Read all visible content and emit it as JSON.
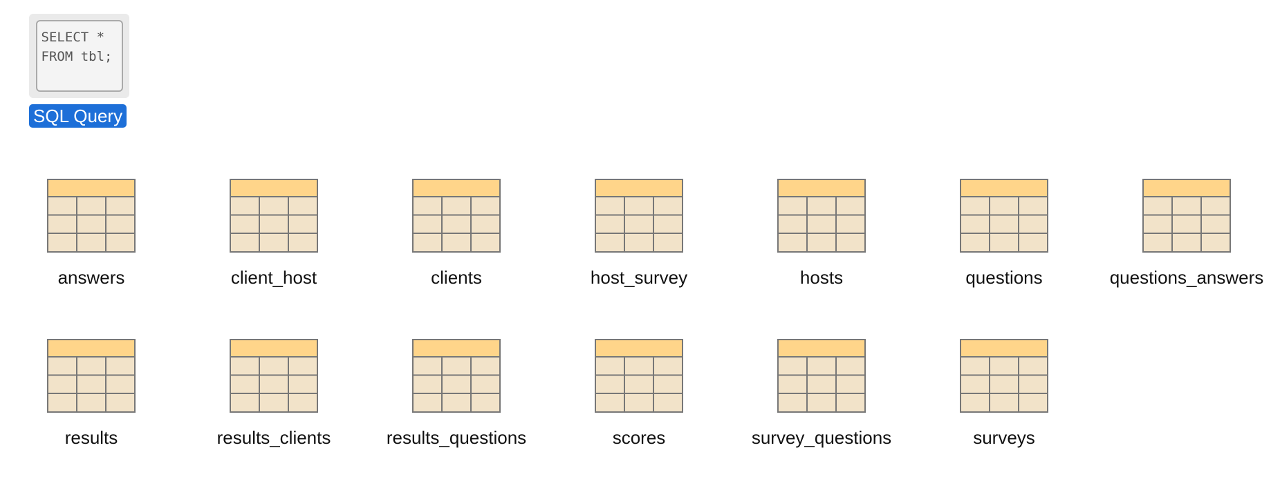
{
  "query": {
    "icon": "sql-document-icon",
    "code_line1": "SELECT *",
    "code_line2": "FROM tbl;",
    "label": "SQL Query",
    "label_bg": "#1d6fd8"
  },
  "table_icon": {
    "icon": "table-icon",
    "header_color": "#ffd58a",
    "cell_color": "#f2e3c9",
    "border_color": "#777777"
  },
  "tables": [
    {
      "name": "answers"
    },
    {
      "name": "client_host"
    },
    {
      "name": "clients"
    },
    {
      "name": "host_survey"
    },
    {
      "name": "hosts"
    },
    {
      "name": "questions"
    },
    {
      "name": "questions_answers"
    },
    {
      "name": "results"
    },
    {
      "name": "results_clients"
    },
    {
      "name": "results_questions"
    },
    {
      "name": "scores"
    },
    {
      "name": "survey_questions"
    },
    {
      "name": "surveys"
    }
  ]
}
